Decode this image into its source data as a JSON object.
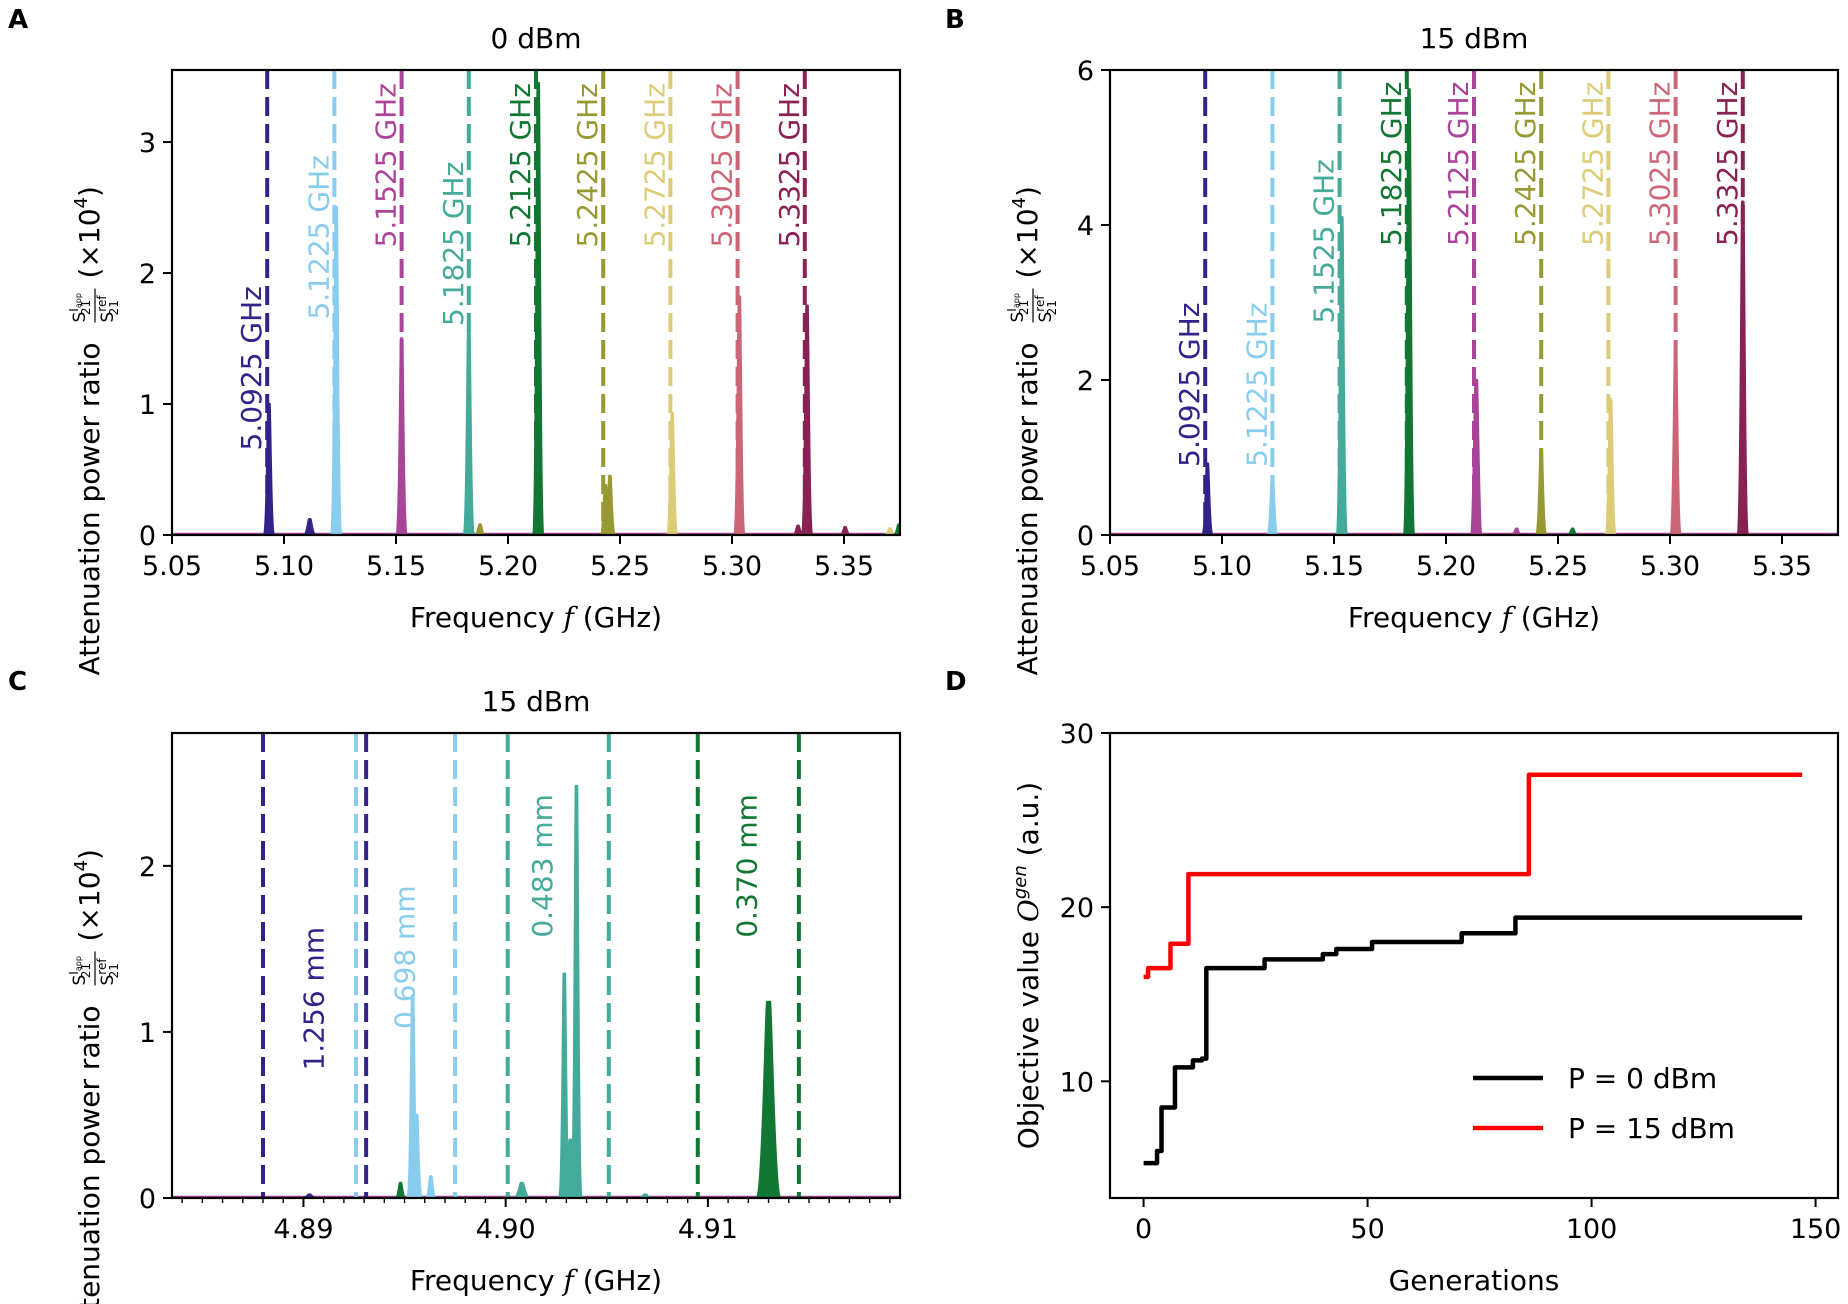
{
  "colors": {
    "indigo": "#332288",
    "sky": "#88ccee",
    "cyan": "#44aa99",
    "green": "#117733",
    "olive": "#999933",
    "sand": "#ddcc77",
    "rose": "#cc6677",
    "wine": "#882255",
    "purple": "#aa4499",
    "red": "#ff0000",
    "black": "#000000"
  },
  "ylabel_common": {
    "prefix": "Attenuation power ratio",
    "num_S": "S",
    "num_sub": "21",
    "num_sup": "I",
    "num_sup_sub": "app",
    "den_S": "S",
    "den_sub": "21",
    "den_sup": "ref",
    "scale_open": "(×10",
    "scale_exp": "4",
    "scale_close": ")"
  },
  "chart_data": [
    {
      "panel": "A",
      "type": "line",
      "title": "0 dBm",
      "xlabel_prefix": "Frequency ",
      "xlabel_var": "f",
      "xlabel_suffix": " (GHz)",
      "xlim": [
        5.05,
        5.375
      ],
      "ylim": [
        0,
        3.55
      ],
      "xticks": [
        5.05,
        5.1,
        5.15,
        5.2,
        5.25,
        5.3,
        5.35
      ],
      "xtick_labels": [
        "5.05",
        "5.10",
        "5.15",
        "5.20",
        "5.25",
        "5.30",
        "5.35"
      ],
      "yticks": [
        0,
        1,
        2,
        3
      ],
      "ytick_labels": [
        "0",
        "1",
        "2",
        "3"
      ],
      "design_lines": [
        {
          "x": 5.0925,
          "label": "5.0925 GHz",
          "color": "indigo"
        },
        {
          "x": 5.1225,
          "label": "5.1225 GHz",
          "color": "sky"
        },
        {
          "x": 5.1525,
          "label": "5.1525 GHz",
          "color": "purple"
        },
        {
          "x": 5.1825,
          "label": "5.1825 GHz",
          "color": "cyan"
        },
        {
          "x": 5.2125,
          "label": "5.2125 GHz",
          "color": "green"
        },
        {
          "x": 5.2425,
          "label": "5.2425 GHz",
          "color": "olive"
        },
        {
          "x": 5.2725,
          "label": "5.2725 GHz",
          "color": "sand"
        },
        {
          "x": 5.3025,
          "label": "5.3025 GHz",
          "color": "rose"
        },
        {
          "x": 5.3325,
          "label": "5.3325 GHz",
          "color": "wine"
        }
      ],
      "label_y": [
        1.9,
        2.9,
        3.45,
        2.85,
        3.45,
        3.45,
        3.45,
        3.45,
        3.45
      ],
      "peaks": [
        {
          "x": 5.0933,
          "height": 1.0,
          "width": 0.0009,
          "color": "indigo"
        },
        {
          "x": 5.1115,
          "height": 0.12,
          "width": 0.0012,
          "color": "indigo"
        },
        {
          "x": 5.1233,
          "height": 2.5,
          "width": 0.0009,
          "color": "sky"
        },
        {
          "x": 5.1525,
          "height": 1.5,
          "width": 0.0009,
          "color": "purple"
        },
        {
          "x": 5.1825,
          "height": 1.6,
          "width": 0.0009,
          "color": "cyan"
        },
        {
          "x": 5.1875,
          "height": 0.08,
          "width": 0.0008,
          "color": "olive"
        },
        {
          "x": 5.2135,
          "height": 3.45,
          "width": 0.0009,
          "color": "green"
        },
        {
          "x": 5.2435,
          "height": 0.38,
          "width": 0.0009,
          "color": "olive"
        },
        {
          "x": 5.2455,
          "height": 0.45,
          "width": 0.0008,
          "color": "olive"
        },
        {
          "x": 5.2733,
          "height": 0.93,
          "width": 0.0009,
          "color": "sand"
        },
        {
          "x": 5.3033,
          "height": 1.82,
          "width": 0.0009,
          "color": "rose"
        },
        {
          "x": 5.3335,
          "height": 1.75,
          "width": 0.0009,
          "color": "wine"
        },
        {
          "x": 5.3295,
          "height": 0.07,
          "width": 0.0008,
          "color": "wine"
        },
        {
          "x": 5.3505,
          "height": 0.06,
          "width": 0.0009,
          "color": "wine"
        },
        {
          "x": 5.3705,
          "height": 0.05,
          "width": 0.0008,
          "color": "sand"
        },
        {
          "x": 5.3745,
          "height": 0.08,
          "width": 0.0008,
          "color": "green"
        }
      ]
    },
    {
      "panel": "B",
      "type": "line",
      "title": "15 dBm",
      "xlabel_prefix": "Frequency ",
      "xlabel_var": "f",
      "xlabel_suffix": " (GHz)",
      "xlim": [
        5.05,
        5.375
      ],
      "ylim": [
        0,
        6.0
      ],
      "xticks": [
        5.05,
        5.1,
        5.15,
        5.2,
        5.25,
        5.3,
        5.35
      ],
      "xtick_labels": [
        "5.05",
        "5.10",
        "5.15",
        "5.20",
        "5.25",
        "5.30",
        "5.35"
      ],
      "yticks": [
        0,
        2,
        4,
        6
      ],
      "ytick_labels": [
        "0",
        "2",
        "4",
        "6"
      ],
      "design_lines": [
        {
          "x": 5.0925,
          "label": "5.0925 GHz",
          "color": "indigo"
        },
        {
          "x": 5.1225,
          "label": "5.1225 GHz",
          "color": "sky"
        },
        {
          "x": 5.1525,
          "label": "5.1525 GHz",
          "color": "cyan"
        },
        {
          "x": 5.1825,
          "label": "5.1825 GHz",
          "color": "green"
        },
        {
          "x": 5.2125,
          "label": "5.2125 GHz",
          "color": "purple"
        },
        {
          "x": 5.2425,
          "label": "5.2425 GHz",
          "color": "olive"
        },
        {
          "x": 5.2725,
          "label": "5.2725 GHz",
          "color": "sand"
        },
        {
          "x": 5.3025,
          "label": "5.3025 GHz",
          "color": "rose"
        },
        {
          "x": 5.3325,
          "label": "5.3325 GHz",
          "color": "wine"
        }
      ],
      "label_y": [
        3.0,
        3.0,
        4.85,
        5.85,
        5.85,
        5.85,
        5.85,
        5.85,
        5.85
      ],
      "peaks": [
        {
          "x": 5.0935,
          "height": 0.92,
          "width": 0.0009,
          "color": "indigo"
        },
        {
          "x": 5.1225,
          "height": 0.75,
          "width": 0.0009,
          "color": "sky"
        },
        {
          "x": 5.1535,
          "height": 4.1,
          "width": 0.0009,
          "color": "cyan"
        },
        {
          "x": 5.1835,
          "height": 5.75,
          "width": 0.0009,
          "color": "green"
        },
        {
          "x": 5.2135,
          "height": 2.0,
          "width": 0.0012,
          "color": "purple"
        },
        {
          "x": 5.2315,
          "height": 0.08,
          "width": 0.0008,
          "color": "purple"
        },
        {
          "x": 5.2425,
          "height": 1.1,
          "width": 0.0009,
          "color": "olive"
        },
        {
          "x": 5.2565,
          "height": 0.08,
          "width": 0.0008,
          "color": "green"
        },
        {
          "x": 5.2735,
          "height": 1.75,
          "width": 0.0009,
          "color": "sand"
        },
        {
          "x": 5.3025,
          "height": 2.4,
          "width": 0.0009,
          "color": "rose"
        },
        {
          "x": 5.3325,
          "height": 4.3,
          "width": 0.0009,
          "color": "wine"
        }
      ]
    },
    {
      "panel": "C",
      "type": "line",
      "title": "15 dBm",
      "xlabel_prefix": "Frequency ",
      "xlabel_var": "f",
      "xlabel_suffix": " (GHz)",
      "xlim": [
        4.8835,
        4.9195
      ],
      "ylim": [
        0,
        2.8
      ],
      "xticks": [
        4.89,
        4.9,
        4.91
      ],
      "xtick_labels": [
        "4.89",
        "4.90",
        "4.91"
      ],
      "minor_xtick_step": 0.001,
      "yticks": [
        0,
        1,
        2
      ],
      "ytick_labels": [
        "0",
        "1",
        "2"
      ],
      "design_lines": [
        {
          "x": 4.888,
          "color": "indigo"
        },
        {
          "x": 4.8926,
          "color": "sky"
        },
        {
          "x": 4.8931,
          "color": "indigo"
        },
        {
          "x": 4.8975,
          "color": "sky"
        },
        {
          "x": 4.9001,
          "color": "cyan"
        },
        {
          "x": 4.9051,
          "color": "cyan"
        },
        {
          "x": 4.9095,
          "color": "green"
        },
        {
          "x": 4.9145,
          "color": "green"
        }
      ],
      "labels": [
        {
          "x": 4.8905,
          "y": 1.2,
          "text": "1.256 mm",
          "color": "indigo"
        },
        {
          "x": 4.895,
          "y": 1.45,
          "text": "0.698 mm",
          "color": "sky"
        },
        {
          "x": 4.9018,
          "y": 2.0,
          "text": "0.483 mm",
          "color": "cyan"
        },
        {
          "x": 4.9119,
          "y": 2.0,
          "text": "0.370 mm",
          "color": "green"
        }
      ],
      "peaks": [
        {
          "x": 4.8903,
          "height": 0.02,
          "width": 0.00015,
          "color": "indigo"
        },
        {
          "x": 4.8948,
          "height": 0.09,
          "width": 7e-05,
          "color": "green"
        },
        {
          "x": 4.8954,
          "height": 1.22,
          "width": 4e-05,
          "color": "sky"
        },
        {
          "x": 4.8956,
          "height": 0.5,
          "width": 7e-05,
          "color": "sky"
        },
        {
          "x": 4.8963,
          "height": 0.13,
          "width": 9e-05,
          "color": "sky"
        },
        {
          "x": 4.9008,
          "height": 0.09,
          "width": 0.00018,
          "color": "cyan"
        },
        {
          "x": 4.9029,
          "height": 1.35,
          "width": 9e-05,
          "color": "cyan"
        },
        {
          "x": 4.9032,
          "height": 0.35,
          "width": 0.00014,
          "color": "cyan"
        },
        {
          "x": 4.9035,
          "height": 2.48,
          "width": 6e-05,
          "color": "cyan"
        },
        {
          "x": 4.9069,
          "height": 0.02,
          "width": 0.00015,
          "color": "cyan"
        },
        {
          "x": 4.913,
          "height": 1.18,
          "width": 0.00028,
          "color": "green"
        }
      ]
    },
    {
      "panel": "D",
      "type": "line",
      "xlabel": "Generations",
      "ylabel_prefix": "Objective value ",
      "ylabel_var": "O",
      "ylabel_sup": "gen",
      "ylabel_suffix": " (a.u.)",
      "xlim": [
        -7.5,
        155
      ],
      "ylim": [
        3.3,
        30
      ],
      "xticks": [
        0,
        50,
        100,
        150
      ],
      "xtick_labels": [
        "0",
        "50",
        "100",
        "150"
      ],
      "yticks": [
        10,
        20,
        30
      ],
      "ytick_labels": [
        "10",
        "20",
        "30"
      ],
      "legend_position": "lower-right",
      "series": [
        {
          "name": "P = 0 dBm",
          "color": "black",
          "x": [
            0,
            2,
            3,
            4,
            7,
            10,
            11,
            13,
            14,
            26,
            27,
            38,
            40,
            42,
            43,
            50,
            51,
            70,
            71,
            82,
            83,
            147
          ],
          "y": [
            5.3,
            5.3,
            6.0,
            8.5,
            10.8,
            10.8,
            11.2,
            11.3,
            16.5,
            16.5,
            17.0,
            17.0,
            17.3,
            17.3,
            17.6,
            17.6,
            18.0,
            18.0,
            18.5,
            18.5,
            19.4,
            19.4
          ]
        },
        {
          "name": "P = 15 dBm",
          "color": "red",
          "x": [
            0,
            1,
            5,
            6,
            9,
            10,
            85,
            86,
            147
          ],
          "y": [
            16.0,
            16.5,
            16.5,
            17.9,
            17.9,
            21.9,
            21.9,
            27.6,
            27.6
          ]
        }
      ]
    }
  ]
}
